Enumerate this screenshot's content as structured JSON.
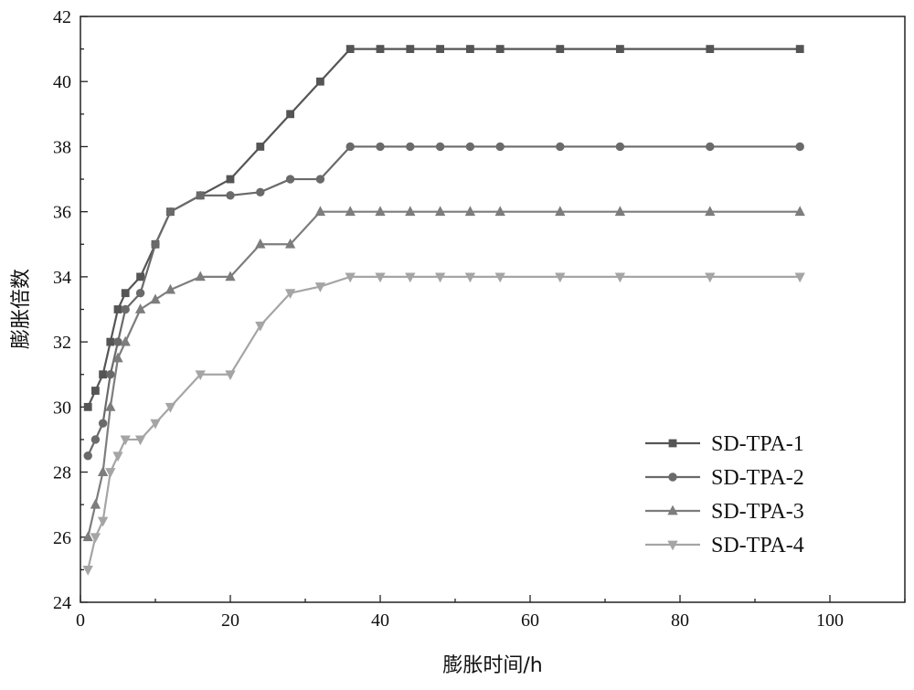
{
  "chart_data": {
    "type": "line",
    "title": "",
    "xlabel": "膨胀时间/h",
    "ylabel": "膨胀倍数",
    "xlim": [
      0,
      110
    ],
    "ylim": [
      24,
      42
    ],
    "xticks": [
      0,
      20,
      40,
      60,
      80,
      100
    ],
    "yticks": [
      24,
      26,
      28,
      30,
      32,
      34,
      36,
      38,
      40,
      42
    ],
    "grid": false,
    "legend_position": "bottom-right",
    "series": [
      {
        "name": "SD-TPA-1",
        "marker": "square",
        "color": "#555555",
        "x": [
          1,
          2,
          3,
          4,
          5,
          6,
          8,
          10,
          12,
          16,
          20,
          24,
          28,
          32,
          36,
          40,
          44,
          48,
          52,
          56,
          64,
          72,
          84,
          96
        ],
        "y": [
          30,
          30.5,
          31,
          32,
          33,
          33.5,
          34,
          35,
          36,
          36.5,
          37,
          38,
          39,
          40,
          41,
          41,
          41,
          41,
          41,
          41,
          41,
          41,
          41,
          41
        ]
      },
      {
        "name": "SD-TPA-2",
        "marker": "circle",
        "color": "#6a6a6a",
        "x": [
          1,
          2,
          3,
          4,
          5,
          6,
          8,
          10,
          12,
          16,
          20,
          24,
          28,
          32,
          36,
          40,
          44,
          48,
          52,
          56,
          64,
          72,
          84,
          96
        ],
        "y": [
          28.5,
          29,
          29.5,
          31,
          32,
          33,
          33.5,
          35,
          36,
          36.5,
          36.5,
          36.6,
          37,
          37,
          38,
          38,
          38,
          38,
          38,
          38,
          38,
          38,
          38,
          38
        ]
      },
      {
        "name": "SD-TPA-3",
        "marker": "triangle-up",
        "color": "#7d7d7d",
        "x": [
          1,
          2,
          3,
          4,
          5,
          6,
          8,
          10,
          12,
          16,
          20,
          24,
          28,
          32,
          36,
          40,
          44,
          48,
          52,
          56,
          64,
          72,
          84,
          96
        ],
        "y": [
          26,
          27,
          28,
          30,
          31.5,
          32,
          33,
          33.3,
          33.6,
          34,
          34,
          35,
          35,
          36,
          36,
          36,
          36,
          36,
          36,
          36,
          36,
          36,
          36,
          36
        ]
      },
      {
        "name": "SD-TPA-4",
        "marker": "triangle-down",
        "color": "#a5a5a5",
        "x": [
          1,
          2,
          3,
          4,
          5,
          6,
          8,
          10,
          12,
          16,
          20,
          24,
          28,
          32,
          36,
          40,
          44,
          48,
          52,
          56,
          64,
          72,
          84,
          96
        ],
        "y": [
          25,
          26,
          26.5,
          28,
          28.5,
          29,
          29,
          29.5,
          30,
          31,
          31,
          32.5,
          33.5,
          33.7,
          34,
          34,
          34,
          34,
          34,
          34,
          34,
          34,
          34,
          34
        ]
      }
    ]
  }
}
